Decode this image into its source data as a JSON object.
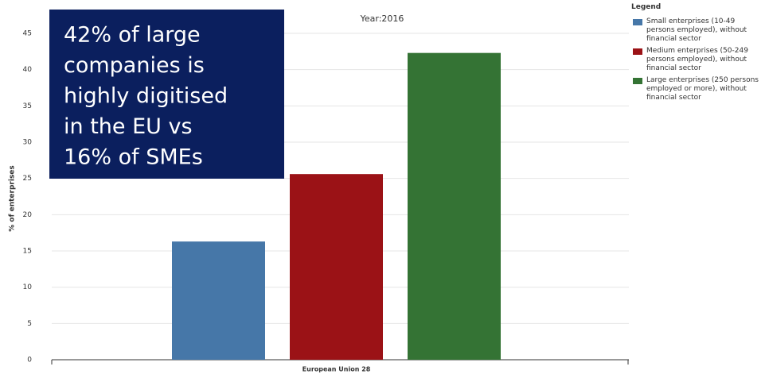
{
  "chart_data": {
    "type": "bar",
    "subtitle": "Year:2016",
    "y_label": "% of enterprises",
    "categories": [
      "European Union 28"
    ],
    "series": [
      {
        "name": "Small enterprises (10-49 persons employed), without financial sector",
        "color": "#4677a8",
        "values": [
          16.3
        ]
      },
      {
        "name": "Medium enterprises (50-249 persons employed), without financial sector",
        "color": "#9b1216",
        "values": [
          25.6
        ]
      },
      {
        "name": "Large enterprises (250 persons employed or more), without financial sector",
        "color": "#347334",
        "values": [
          42.3
        ]
      }
    ],
    "ylim": [
      0,
      45
    ],
    "yticks": [
      0,
      5,
      10,
      15,
      20,
      25,
      30,
      35,
      40,
      45
    ],
    "grid": true,
    "legend_title": "Legend",
    "legend_position": "right",
    "annotation": [
      "42% of large",
      "companies is",
      "highly digitised",
      "in the EU vs",
      "16% of SMEs"
    ]
  }
}
